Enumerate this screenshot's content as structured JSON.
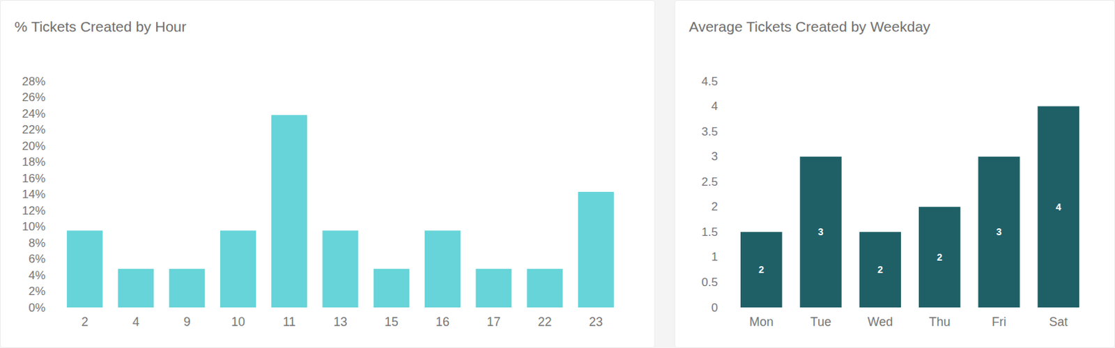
{
  "chart_data": [
    {
      "type": "bar",
      "title": "% Tickets Created by Hour",
      "categories": [
        "2",
        "4",
        "9",
        "10",
        "11",
        "13",
        "15",
        "16",
        "17",
        "22",
        "23"
      ],
      "values": [
        9.52,
        4.76,
        4.76,
        9.52,
        23.81,
        9.52,
        4.76,
        9.52,
        4.76,
        4.76,
        14.29
      ],
      "color": "#66d4d9",
      "ylim": [
        0,
        28
      ],
      "yticks": [
        {
          "value": 0,
          "label": "0%"
        },
        {
          "value": 2,
          "label": "2%"
        },
        {
          "value": 4,
          "label": "4%"
        },
        {
          "value": 6,
          "label": "6%"
        },
        {
          "value": 8,
          "label": "8%"
        },
        {
          "value": 10,
          "label": "10%"
        },
        {
          "value": 12,
          "label": "12%"
        },
        {
          "value": 14,
          "label": "14%"
        },
        {
          "value": 16,
          "label": "16%"
        },
        {
          "value": 18,
          "label": "18%"
        },
        {
          "value": 20,
          "label": "20%"
        },
        {
          "value": 22,
          "label": "22%"
        },
        {
          "value": 24,
          "label": "24%"
        },
        {
          "value": 26,
          "label": "26%"
        },
        {
          "value": 28,
          "label": "28%"
        }
      ],
      "grid": false,
      "data_labels": false
    },
    {
      "type": "bar",
      "title": "Average Tickets Created by Weekday",
      "categories": [
        "Mon",
        "Tue",
        "Wed",
        "Thu",
        "Fri",
        "Sat"
      ],
      "values": [
        1.5,
        3,
        1.5,
        2,
        3,
        4
      ],
      "value_labels": [
        "2",
        "3",
        "2",
        "2",
        "3",
        "4"
      ],
      "color": "#1f6067",
      "ylim": [
        0,
        4.5
      ],
      "yticks": [
        0,
        0.5,
        1,
        1.5,
        2,
        2.5,
        3,
        3.5,
        4,
        4.5
      ],
      "grid": false,
      "data_labels": true
    }
  ]
}
